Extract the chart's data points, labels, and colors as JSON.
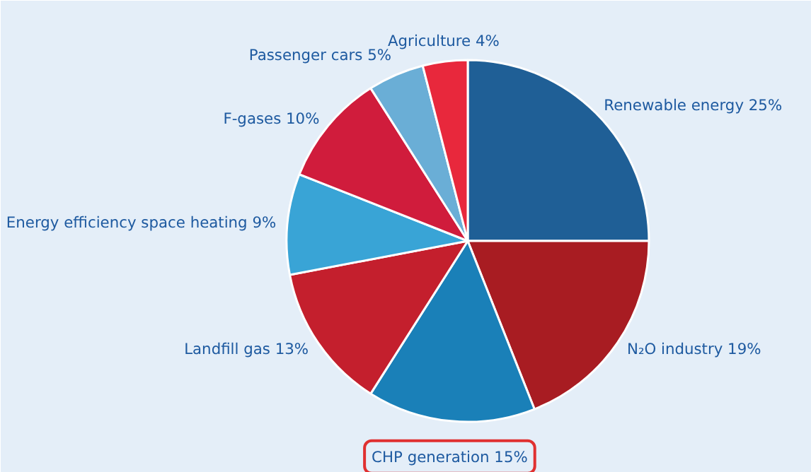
{
  "chart_data": {
    "type": "pie",
    "categories": [
      "Renewable energy",
      "N₂O industry",
      "CHP generation",
      "Landfill gas",
      "Energy efficiency space heating",
      "F-gases",
      "Passenger cars",
      "Agriculture"
    ],
    "values": [
      25,
      19,
      15,
      13,
      9,
      10,
      5,
      4
    ],
    "value_labels": [
      "25%",
      "19%",
      "15%",
      "13%",
      "9%",
      "10%",
      "5%",
      "4%"
    ],
    "colors": [
      "#1f5f96",
      "#a81c22",
      "#1a80b8",
      "#c41f2d",
      "#39a4d6",
      "#d01c3c",
      "#6aaed6",
      "#e8283c"
    ]
  }
}
